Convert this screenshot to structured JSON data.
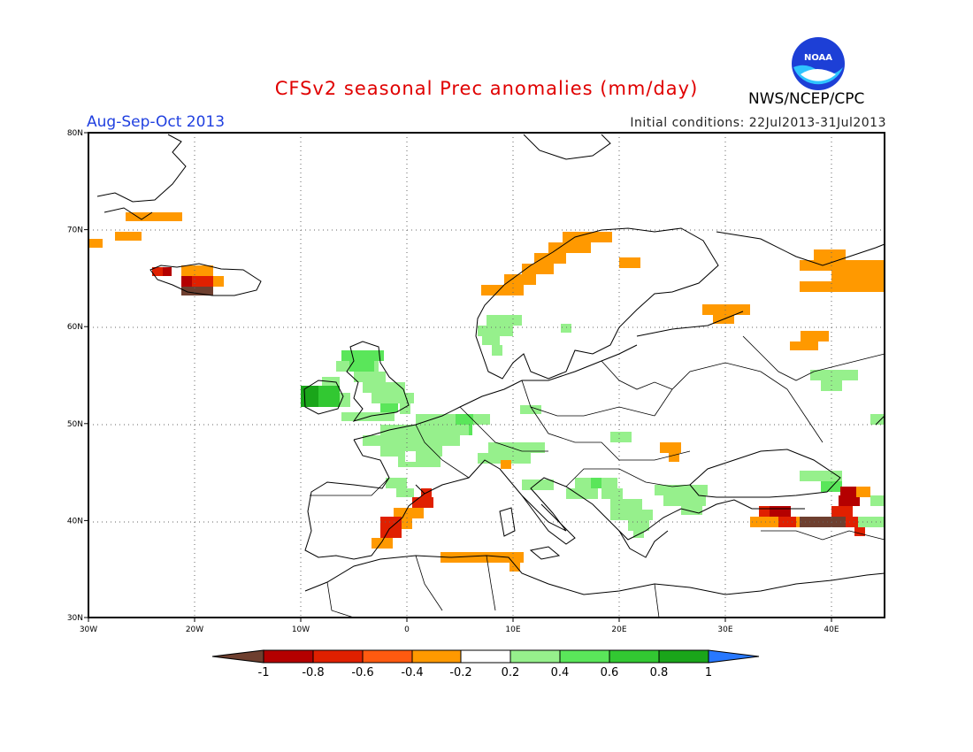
{
  "header": {
    "title": "CFSv2 seasonal Prec anomalies (mm/day)",
    "period": "Aug-Sep-Oct 2013",
    "initial_conditions": "Initial conditions: 22Jul2013-31Jul2013",
    "agency": "NWS/NCEP/CPC",
    "logo_text": "NOAA"
  },
  "map": {
    "lon_range": [
      -30,
      45
    ],
    "lat_range": [
      30,
      80
    ],
    "lon_ticks": [
      "30W",
      "20W",
      "10W",
      "0",
      "10E",
      "20E",
      "30E",
      "40E"
    ],
    "lat_ticks": [
      "80N",
      "70N",
      "60N",
      "50N",
      "40N",
      "30N"
    ],
    "grid": true,
    "land_color": "#ffffff",
    "coast_color": "#000000"
  },
  "colorbar": {
    "labels": [
      "-1",
      "-0.8",
      "-0.6",
      "-0.4",
      "-0.2",
      "0.2",
      "0.4",
      "0.6",
      "0.8",
      "1"
    ],
    "colors": [
      "#6e3f2f",
      "#b40000",
      "#e02000",
      "#ff5a10",
      "#ff9900",
      "#ffffff",
      "#96f08c",
      "#5ae65a",
      "#32c832",
      "#1aa51a",
      "#2878ff"
    ]
  },
  "colors": {
    "title": "#e00000",
    "period": "#2040e0"
  }
}
